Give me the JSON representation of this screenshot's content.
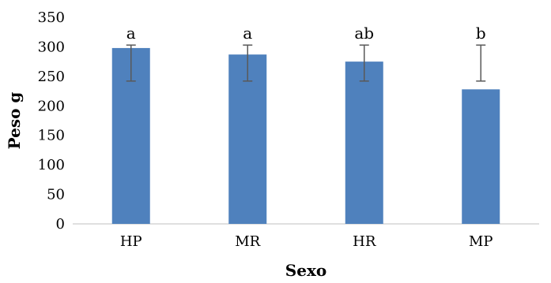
{
  "chart_data": {
    "type": "bar",
    "title": "",
    "xlabel": "Sexo",
    "ylabel": "Peso g",
    "ylim": [
      0,
      350
    ],
    "yticks": [
      0,
      50,
      100,
      150,
      200,
      250,
      300,
      350
    ],
    "categories": [
      "HP",
      "MR",
      "HR",
      "MP"
    ],
    "values": [
      298,
      287,
      275,
      228
    ],
    "error_low": [
      242,
      242,
      242,
      242
    ],
    "error_high": [
      303,
      303,
      303,
      303
    ],
    "significance_letters": [
      "a",
      "a",
      "ab",
      "b"
    ],
    "grid": false,
    "legend": "none",
    "bar_color": "#4F81BD",
    "error_color": "#595959"
  }
}
